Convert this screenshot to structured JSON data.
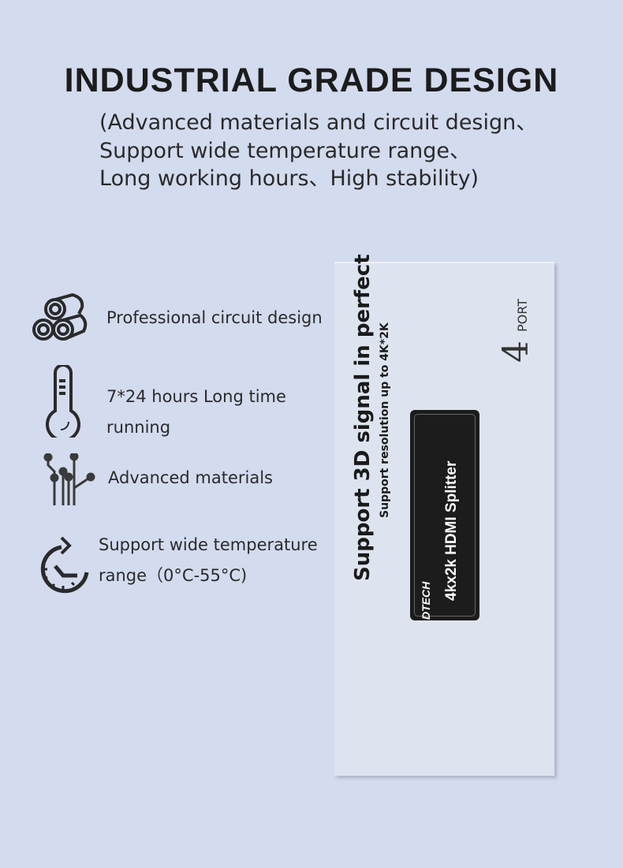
{
  "header": {
    "title": "INDUSTRIAL GRADE DESIGN",
    "subtitle_lines": [
      "(Advanced materials and circuit design、",
      " Support wide temperature range、",
      " Long working hours、High stability)"
    ]
  },
  "features": [
    {
      "icon": "cylinders-icon",
      "lines": [
        "Professional circuit design"
      ]
    },
    {
      "icon": "thermometer-icon",
      "lines": [
        "7*24 hours Long time",
        "running"
      ]
    },
    {
      "icon": "circuit-icon",
      "lines": [
        "Advanced materials"
      ]
    },
    {
      "icon": "clock-rotate-icon",
      "lines": [
        "Support wide temperature",
        "range（0°C-55°C)"
      ]
    }
  ],
  "device": {
    "headline": "Support 3D signal in perfect",
    "subline": "Support resolution up to 4K*2K",
    "brand": "DTECH",
    "product": "4kx2k HDMI Splitter",
    "port_number": "4",
    "port_label": "PORT"
  },
  "colors": {
    "background": "#d3dbee",
    "device": "#dee4ef",
    "label": "#1c1c1c"
  }
}
